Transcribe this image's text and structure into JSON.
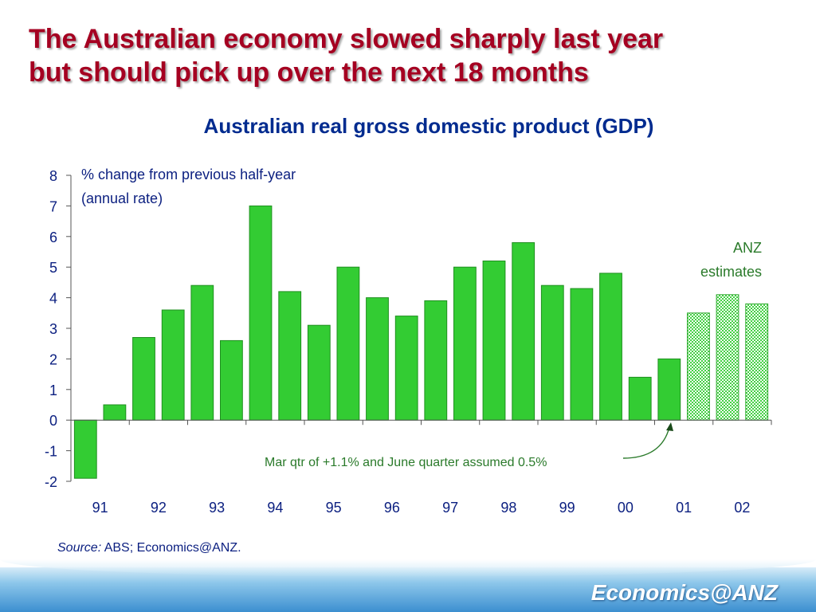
{
  "slide": {
    "title_line1": "The Australian economy slowed sharply last year",
    "title_line2": "but should pick up over the next 18 months"
  },
  "source": {
    "label": "Source:",
    "text": " ABS; Economics@ANZ."
  },
  "brand": {
    "text": "Economics@ANZ"
  },
  "colors": {
    "bar_actual": "#33cc33",
    "bar_estimate_pattern": "#7fe07f",
    "title": "#a50021",
    "chart_title": "#002b8f",
    "annotation_text": "#2a7a2a"
  },
  "chart_data": {
    "type": "bar",
    "title": "Australian real gross domestic product (GDP)",
    "ylabel": "% change from previous half-year (annual rate)",
    "ylabel_line1": "% change from previous half-year",
    "ylabel_line2": "(annual rate)",
    "ylim": [
      -2,
      8
    ],
    "yticks": [
      8,
      7,
      6,
      5,
      4,
      3,
      2,
      1,
      0,
      -1,
      -2
    ],
    "xlabels": [
      "91",
      "92",
      "93",
      "94",
      "95",
      "96",
      "97",
      "98",
      "99",
      "00",
      "01",
      "02"
    ],
    "values": [
      -1.9,
      0.5,
      2.7,
      3.6,
      4.4,
      2.6,
      7.0,
      4.2,
      3.1,
      5.0,
      4.0,
      3.4,
      3.9,
      5.0,
      5.2,
      5.8,
      4.4,
      4.3,
      4.8,
      1.4,
      2.0,
      3.5,
      4.1,
      3.8
    ],
    "estimate_from_index": 21,
    "estimates_label_line1": "ANZ",
    "estimates_label_line2": "estimates",
    "annotation": "Mar qtr of +1.1% and June quarter assumed 0.5%",
    "grid": false,
    "legend": "none"
  }
}
